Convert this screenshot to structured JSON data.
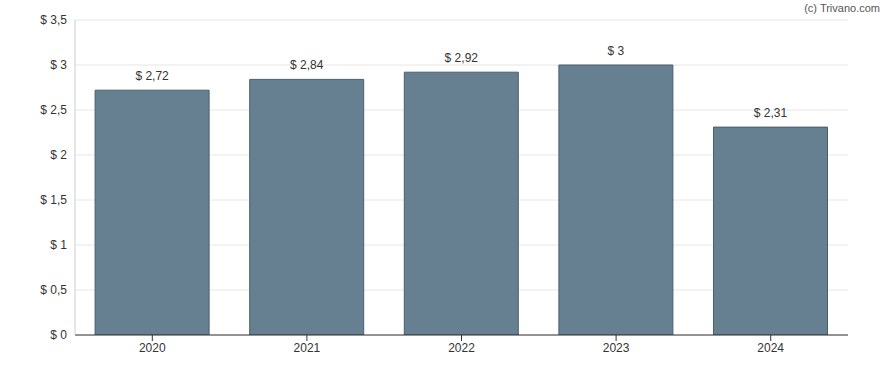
{
  "chart_data": {
    "type": "bar",
    "categories": [
      "2020",
      "2021",
      "2022",
      "2023",
      "2024"
    ],
    "values": [
      2.72,
      2.84,
      2.92,
      3,
      2.31
    ],
    "value_labels": [
      "$ 2,72",
      "$ 2,84",
      "$ 2,92",
      "$ 3",
      "$ 2,31"
    ],
    "data_labels": true,
    "color": "#667f91",
    "ylim": [
      0,
      3.5
    ],
    "yticks": [
      {
        "value": 0,
        "label": "$ 0"
      },
      {
        "value": 0.5,
        "label": "$ 0,5"
      },
      {
        "value": 1,
        "label": "$ 1"
      },
      {
        "value": 1.5,
        "label": "$ 1,5"
      },
      {
        "value": 2,
        "label": "$ 2"
      },
      {
        "value": 2.5,
        "label": "$ 2,5"
      },
      {
        "value": 3,
        "label": "$ 3"
      },
      {
        "value": 3.5,
        "label": "$ 3,5"
      }
    ],
    "grid": true,
    "annotations": [
      "(c) Trivano.com"
    ]
  }
}
